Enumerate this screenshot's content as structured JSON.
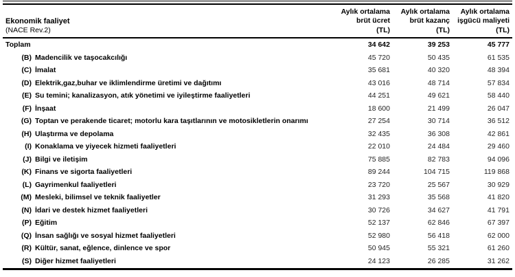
{
  "table": {
    "header": {
      "label_col": {
        "line1": "Ekonomik faaliyet",
        "line2": "(NACE Rev.2)"
      },
      "value_cols": [
        {
          "line1": "Aylık ortalama",
          "line2": "brüt ücret",
          "line3": "(TL)"
        },
        {
          "line1": "Aylık ortalama",
          "line2": "brüt kazanç",
          "line3": "(TL)"
        },
        {
          "line1": "Aylık ortalama",
          "line2": "işgücü maliyeti",
          "line3": "(TL)"
        }
      ]
    },
    "rows": [
      {
        "code": "",
        "label": "Toplam",
        "bold": true,
        "values": [
          "34 642",
          "39 253",
          "45 777"
        ]
      },
      {
        "code": "(B)",
        "label": "Madencilik ve taşocakcılığı",
        "bold": false,
        "values": [
          "45 720",
          "50 435",
          "61 535"
        ]
      },
      {
        "code": "(C)",
        "label": "İmalat",
        "bold": false,
        "values": [
          "35 681",
          "40 320",
          "48 394"
        ]
      },
      {
        "code": "(D)",
        "label": "Elektrik,gaz,buhar ve iklimlendirme üretimi ve dağıtımı",
        "bold": false,
        "values": [
          "43 016",
          "48 714",
          "57 834"
        ]
      },
      {
        "code": "(E)",
        "label": "Su temini; kanalizasyon, atık yönetimi ve iyileştirme faaliyetleri",
        "bold": false,
        "values": [
          "44 251",
          "49 621",
          "58 440"
        ]
      },
      {
        "code": "(F)",
        "label": "İnşaat",
        "bold": false,
        "values": [
          "18 600",
          "21 499",
          "26 047"
        ]
      },
      {
        "code": "(G)",
        "label": "Toptan ve perakende ticaret; motorlu kara taşıtlarının ve motosikletlerin onarımı",
        "bold": false,
        "values": [
          "27 254",
          "30 714",
          "36 512"
        ]
      },
      {
        "code": "(H)",
        "label": "Ulaştırma ve depolama",
        "bold": false,
        "values": [
          "32 435",
          "36 308",
          "42 861"
        ]
      },
      {
        "code": "(I)",
        "label": "Konaklama ve yiyecek hizmeti faaliyetleri",
        "bold": false,
        "values": [
          "22 010",
          "24 484",
          "29 460"
        ]
      },
      {
        "code": "(J)",
        "label": "Bilgi ve iletişim",
        "bold": false,
        "values": [
          "75 885",
          "82 783",
          "94 096"
        ]
      },
      {
        "code": "(K)",
        "label": "Finans ve sigorta faaliyetleri",
        "bold": false,
        "values": [
          "89 244",
          "104 715",
          "119 868"
        ]
      },
      {
        "code": "(L)",
        "label": "Gayrimenkul faaliyetleri",
        "bold": false,
        "values": [
          "23 720",
          "25 567",
          "30 929"
        ]
      },
      {
        "code": "(M)",
        "label": "Mesleki, bilimsel ve teknik faaliyetler",
        "bold": false,
        "values": [
          "31 293",
          "35 568",
          "41 820"
        ]
      },
      {
        "code": "(N)",
        "label": "İdari ve destek hizmet faaliyetleri",
        "bold": false,
        "values": [
          "30 726",
          "34 627",
          "41 791"
        ]
      },
      {
        "code": "(P)",
        "label": "Eğitim",
        "bold": false,
        "values": [
          "52 137",
          "62 846",
          "67 397"
        ]
      },
      {
        "code": "(Q)",
        "label": "İnsan sağlığı ve sosyal hizmet faaliyetleri",
        "bold": false,
        "values": [
          "52 980",
          "56 418",
          "62 000"
        ]
      },
      {
        "code": "(R)",
        "label": "Kültür, sanat, eğlence, dinlence ve spor",
        "bold": false,
        "values": [
          "50 945",
          "55 321",
          "61 260"
        ]
      },
      {
        "code": "(S)",
        "label": "Diğer hizmet faaliyetleri",
        "bold": false,
        "values": [
          "24 123",
          "26 285",
          "31 262"
        ]
      }
    ]
  }
}
